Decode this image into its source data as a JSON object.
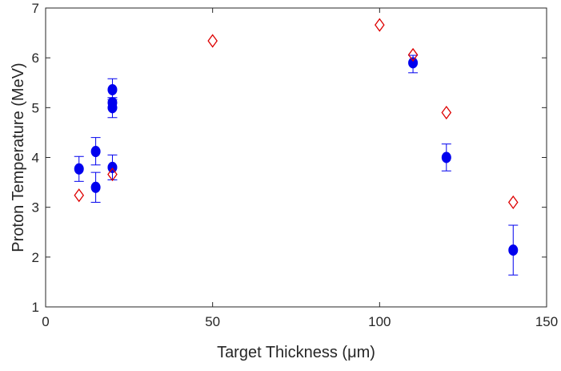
{
  "chart_data": {
    "type": "scatter",
    "xlabel": "Target Thickness (μm)",
    "ylabel": "Proton Temperature (MeV)",
    "xlim": [
      0,
      150
    ],
    "ylim": [
      1,
      7
    ],
    "xticks": [
      0,
      50,
      100,
      150
    ],
    "yticks": [
      1,
      2,
      3,
      4,
      5,
      6,
      7
    ],
    "grid": false,
    "legend": "none",
    "series": [
      {
        "marker": "filled-circle",
        "color": "#0000ee",
        "points": [
          {
            "x": 10,
            "y": 3.77,
            "err_low": 0.25,
            "err_high": 0.25
          },
          {
            "x": 15,
            "y": 4.12,
            "err_low": 0.27,
            "err_high": 0.28
          },
          {
            "x": 15,
            "y": 3.4,
            "err_low": 0.3,
            "err_high": 0.3
          },
          {
            "x": 20,
            "y": 5.36,
            "err_low": 0.2,
            "err_high": 0.22
          },
          {
            "x": 20,
            "y": 5.1,
            "err_low": 0.1,
            "err_high": 0.1
          },
          {
            "x": 20,
            "y": 5.0,
            "err_low": 0.2,
            "err_high": 0.2
          },
          {
            "x": 20,
            "y": 3.8,
            "err_low": 0.25,
            "err_high": 0.25
          },
          {
            "x": 110,
            "y": 5.9,
            "err_low": 0.2,
            "err_high": 0.15
          },
          {
            "x": 120,
            "y": 4.0,
            "err_low": 0.27,
            "err_high": 0.27
          },
          {
            "x": 140,
            "y": 2.14,
            "err_low": 0.5,
            "err_high": 0.5
          }
        ]
      },
      {
        "marker": "open-diamond",
        "color": "#dd0000",
        "points": [
          {
            "x": 10,
            "y": 3.24
          },
          {
            "x": 20,
            "y": 3.66
          },
          {
            "x": 50,
            "y": 6.34
          },
          {
            "x": 100,
            "y": 6.66
          },
          {
            "x": 110,
            "y": 6.06
          },
          {
            "x": 120,
            "y": 4.9
          },
          {
            "x": 140,
            "y": 3.1
          }
        ]
      }
    ]
  }
}
